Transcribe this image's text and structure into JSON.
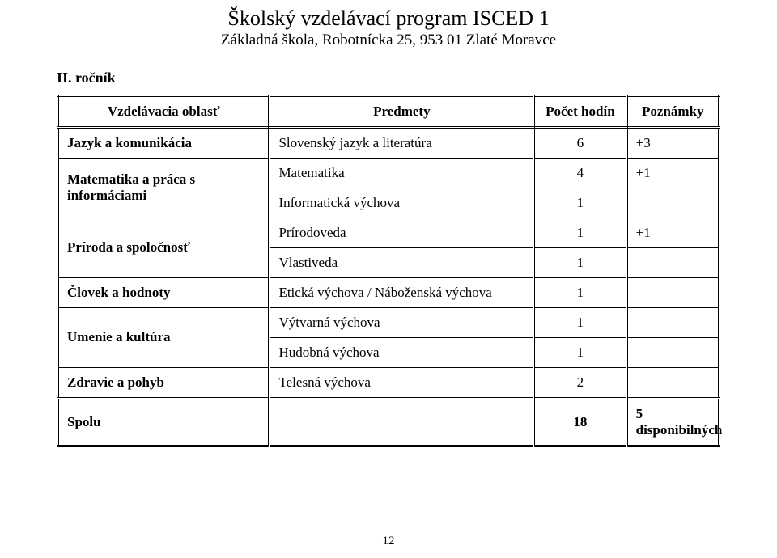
{
  "head": {
    "title": "Školský vzdelávací program ISCED 1",
    "subtitle": "Základná škola, Robotnícka 25, 953 01  Zlaté Moravce"
  },
  "section_label": "II. ročník",
  "table": {
    "headers": [
      "Vzdelávacia oblasť",
      "Predmety",
      "Počet hodín",
      "Poznámky"
    ],
    "rows": [
      {
        "area": "Jazyk a komunikácia",
        "subject": "Slovenský jazyk a literatúra",
        "hours": "6",
        "note": "+3",
        "rowspan": 1
      },
      {
        "area": "Matematika  a práca  s informáciami",
        "subject": "Matematika",
        "hours": "4",
        "note": "+1",
        "rowspan": 2
      },
      {
        "area": "",
        "subject": "Informatická výchova",
        "hours": "1",
        "note": ""
      },
      {
        "area": "Príroda a spoločnosť",
        "subject": "Prírodoveda",
        "hours": "1",
        "note": "+1",
        "rowspan": 2
      },
      {
        "area": "",
        "subject": "Vlastiveda",
        "hours": "1",
        "note": ""
      },
      {
        "area": "Človek a hodnoty",
        "subject": "Etická výchova / Náboženská výchova",
        "hours": "1",
        "note": "",
        "rowspan": 1
      },
      {
        "area": "Umenie a kultúra",
        "subject": "Výtvarná výchova",
        "hours": "1",
        "note": "",
        "rowspan": 2
      },
      {
        "area": "",
        "subject": "Hudobná výchova",
        "hours": "1",
        "note": ""
      },
      {
        "area": "Zdravie a pohyb",
        "subject": "Telesná výchova",
        "hours": "2",
        "note": "",
        "rowspan": 1
      }
    ],
    "total": {
      "label": "Spolu",
      "hours": "18",
      "note": "5 disponibilných"
    }
  },
  "page_number": "12"
}
